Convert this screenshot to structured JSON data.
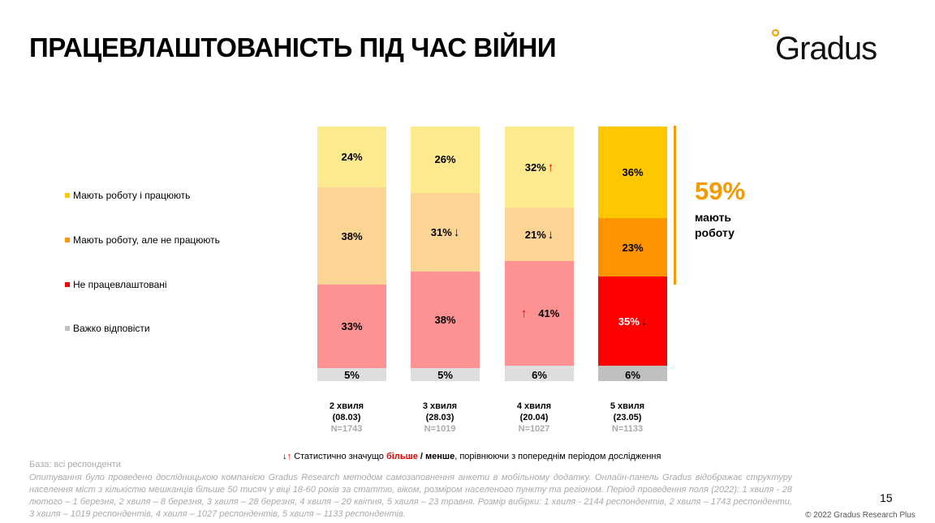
{
  "title": "ПРАЦЕВЛАШТОВАНІСТЬ ПІД ЧАС ВІЙНИ",
  "logo": "Gradus",
  "chart_data": {
    "type": "bar",
    "stacked": true,
    "categories": [
      {
        "wave": "2 хвиля",
        "date": "(08.03)",
        "n": "N=1743"
      },
      {
        "wave": "3 хвиля",
        "date": "(28.03)",
        "n": "N=1019"
      },
      {
        "wave": "4 хвиля",
        "date": "(20.04)",
        "n": "N=1027"
      },
      {
        "wave": "5 хвиля",
        "date": "(23.05)",
        "n": "N=1133"
      }
    ],
    "series": [
      {
        "name": "Мають роботу і працюють",
        "values": [
          24,
          26,
          32,
          36
        ],
        "colors": [
          "#fde98e",
          "#fde98e",
          "#fde98e",
          "#fec800"
        ],
        "sig": [
          null,
          null,
          "up",
          null
        ]
      },
      {
        "name": "Мають роботу, але не працюють",
        "values": [
          38,
          31,
          21,
          23
        ],
        "colors": [
          "#fcd595",
          "#fcd595",
          "#fcd595",
          "#fd9400"
        ],
        "sig": [
          null,
          "down",
          "down",
          null
        ]
      },
      {
        "name": "Не працевлаштовані",
        "values": [
          33,
          38,
          41,
          35
        ],
        "colors": [
          "#fe9191",
          "#fe9191",
          "#fe9191",
          "#fe0000"
        ],
        "sig": [
          null,
          null,
          "up-left",
          "down"
        ]
      },
      {
        "name": "Важко відповісти",
        "values": [
          5,
          5,
          6,
          6
        ],
        "colors": [
          "#dedede",
          "#dedede",
          "#dedede",
          "#bfbfbf"
        ],
        "sig": [
          null,
          null,
          null,
          null
        ]
      }
    ],
    "legend_colors": [
      "#fec800",
      "#fd9400",
      "#fe0000",
      "#bfbfbf"
    ],
    "annotation": {
      "value": "59%",
      "text": "мають роботу"
    }
  },
  "note": {
    "more": "більше",
    "sep": " / ",
    "less": "менше",
    "pre": "Статистично значущо ",
    "post": ", порівнюючи з попереднім періодом дослідження"
  },
  "base": "База: всі респонденти",
  "method": "Опитування було проведено дослідницькою компанією Gradus Research методом самозаповнення анкети в мобільному додатку. Онлайн-панель Gradus відображає структуру населення міст з кількістю мешканців більше 50 тисяч у віці 18-60 років за статтю, віком, розміром населеного пункту та регіоном. Період проведення поля (2022): 1 хвиля - 28 лютого – 1 березня, 2 хвиля – 8 березня, 3 хвиля – 28 березня, 4 хвиля – 20 квітня, 5 хвиля – 23 травня. Розмір вибірки: 1 хвиля - 2144 респондентів, 2 хвиля – 1743 респонденти, 3 хвиля – 1019 респондентів, 4 хвиля – 1027 респондентів, 5 хвиля – 1133 респондентів.",
  "page": "15",
  "copyright": "© 2022 Gradus Research Plus"
}
